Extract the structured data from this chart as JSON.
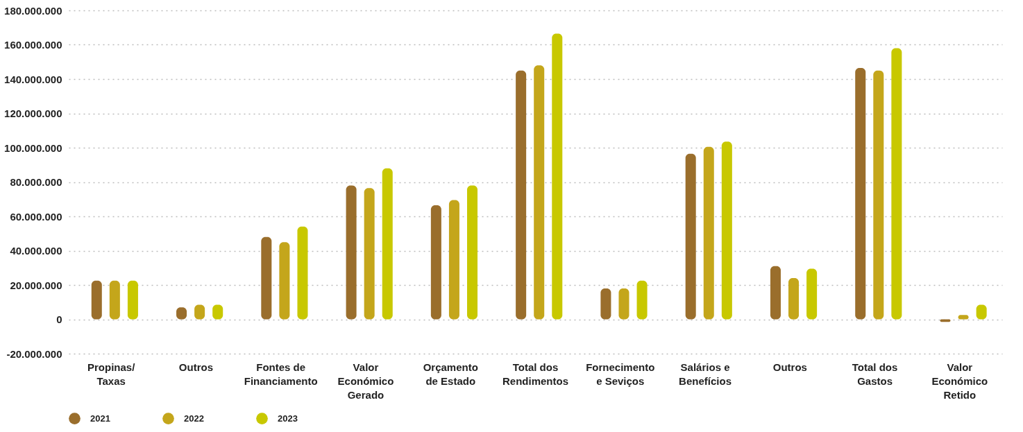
{
  "chart_data": {
    "type": "bar",
    "categories": [
      "Propinas/\nTaxas",
      "Outros",
      "Fontes de\nFinanciamento",
      "Valor\nEconómico\nGerado",
      "Orçamento\nde Estado",
      "Total dos\nRendimentos",
      "Fornecimento\ne Seviços",
      "Salários e\nBenefícios",
      "Outros",
      "Total dos\nGastos",
      "Valor\nEconómico\nRetido"
    ],
    "series": [
      {
        "name": "2021",
        "color": "#9a6e2c",
        "values": [
          22500000,
          7000000,
          48000000,
          78000000,
          66500000,
          145000000,
          18000000,
          96500000,
          31000000,
          146500000,
          -1500000
        ]
      },
      {
        "name": "2022",
        "color": "#c4a61b",
        "values": [
          22500000,
          8500000,
          45000000,
          76500000,
          69500000,
          148000000,
          18000000,
          100500000,
          24000000,
          145000000,
          2500000
        ]
      },
      {
        "name": "2023",
        "color": "#c8c800",
        "values": [
          22500000,
          8500000,
          54000000,
          88000000,
          78000000,
          166500000,
          22500000,
          103500000,
          29500000,
          158000000,
          8500000
        ]
      }
    ],
    "ylim": [
      -20000000,
      180000000
    ],
    "yticks": [
      {
        "value": -20000000,
        "label": "-20.000.000"
      },
      {
        "value": 0,
        "label": "0"
      },
      {
        "value": 20000000,
        "label": "20.000.000"
      },
      {
        "value": 40000000,
        "label": "40.000.000"
      },
      {
        "value": 60000000,
        "label": "60.000.000"
      },
      {
        "value": 80000000,
        "label": "80.000.000"
      },
      {
        "value": 100000000,
        "label": "100.000.000"
      },
      {
        "value": 120000000,
        "label": "120.000.000"
      },
      {
        "value": 140000000,
        "label": "140.000.000"
      },
      {
        "value": 160000000,
        "label": "160.000.000"
      },
      {
        "value": 180000000,
        "label": "180.000.000"
      }
    ],
    "grid": "y",
    "legend": "bottom"
  }
}
